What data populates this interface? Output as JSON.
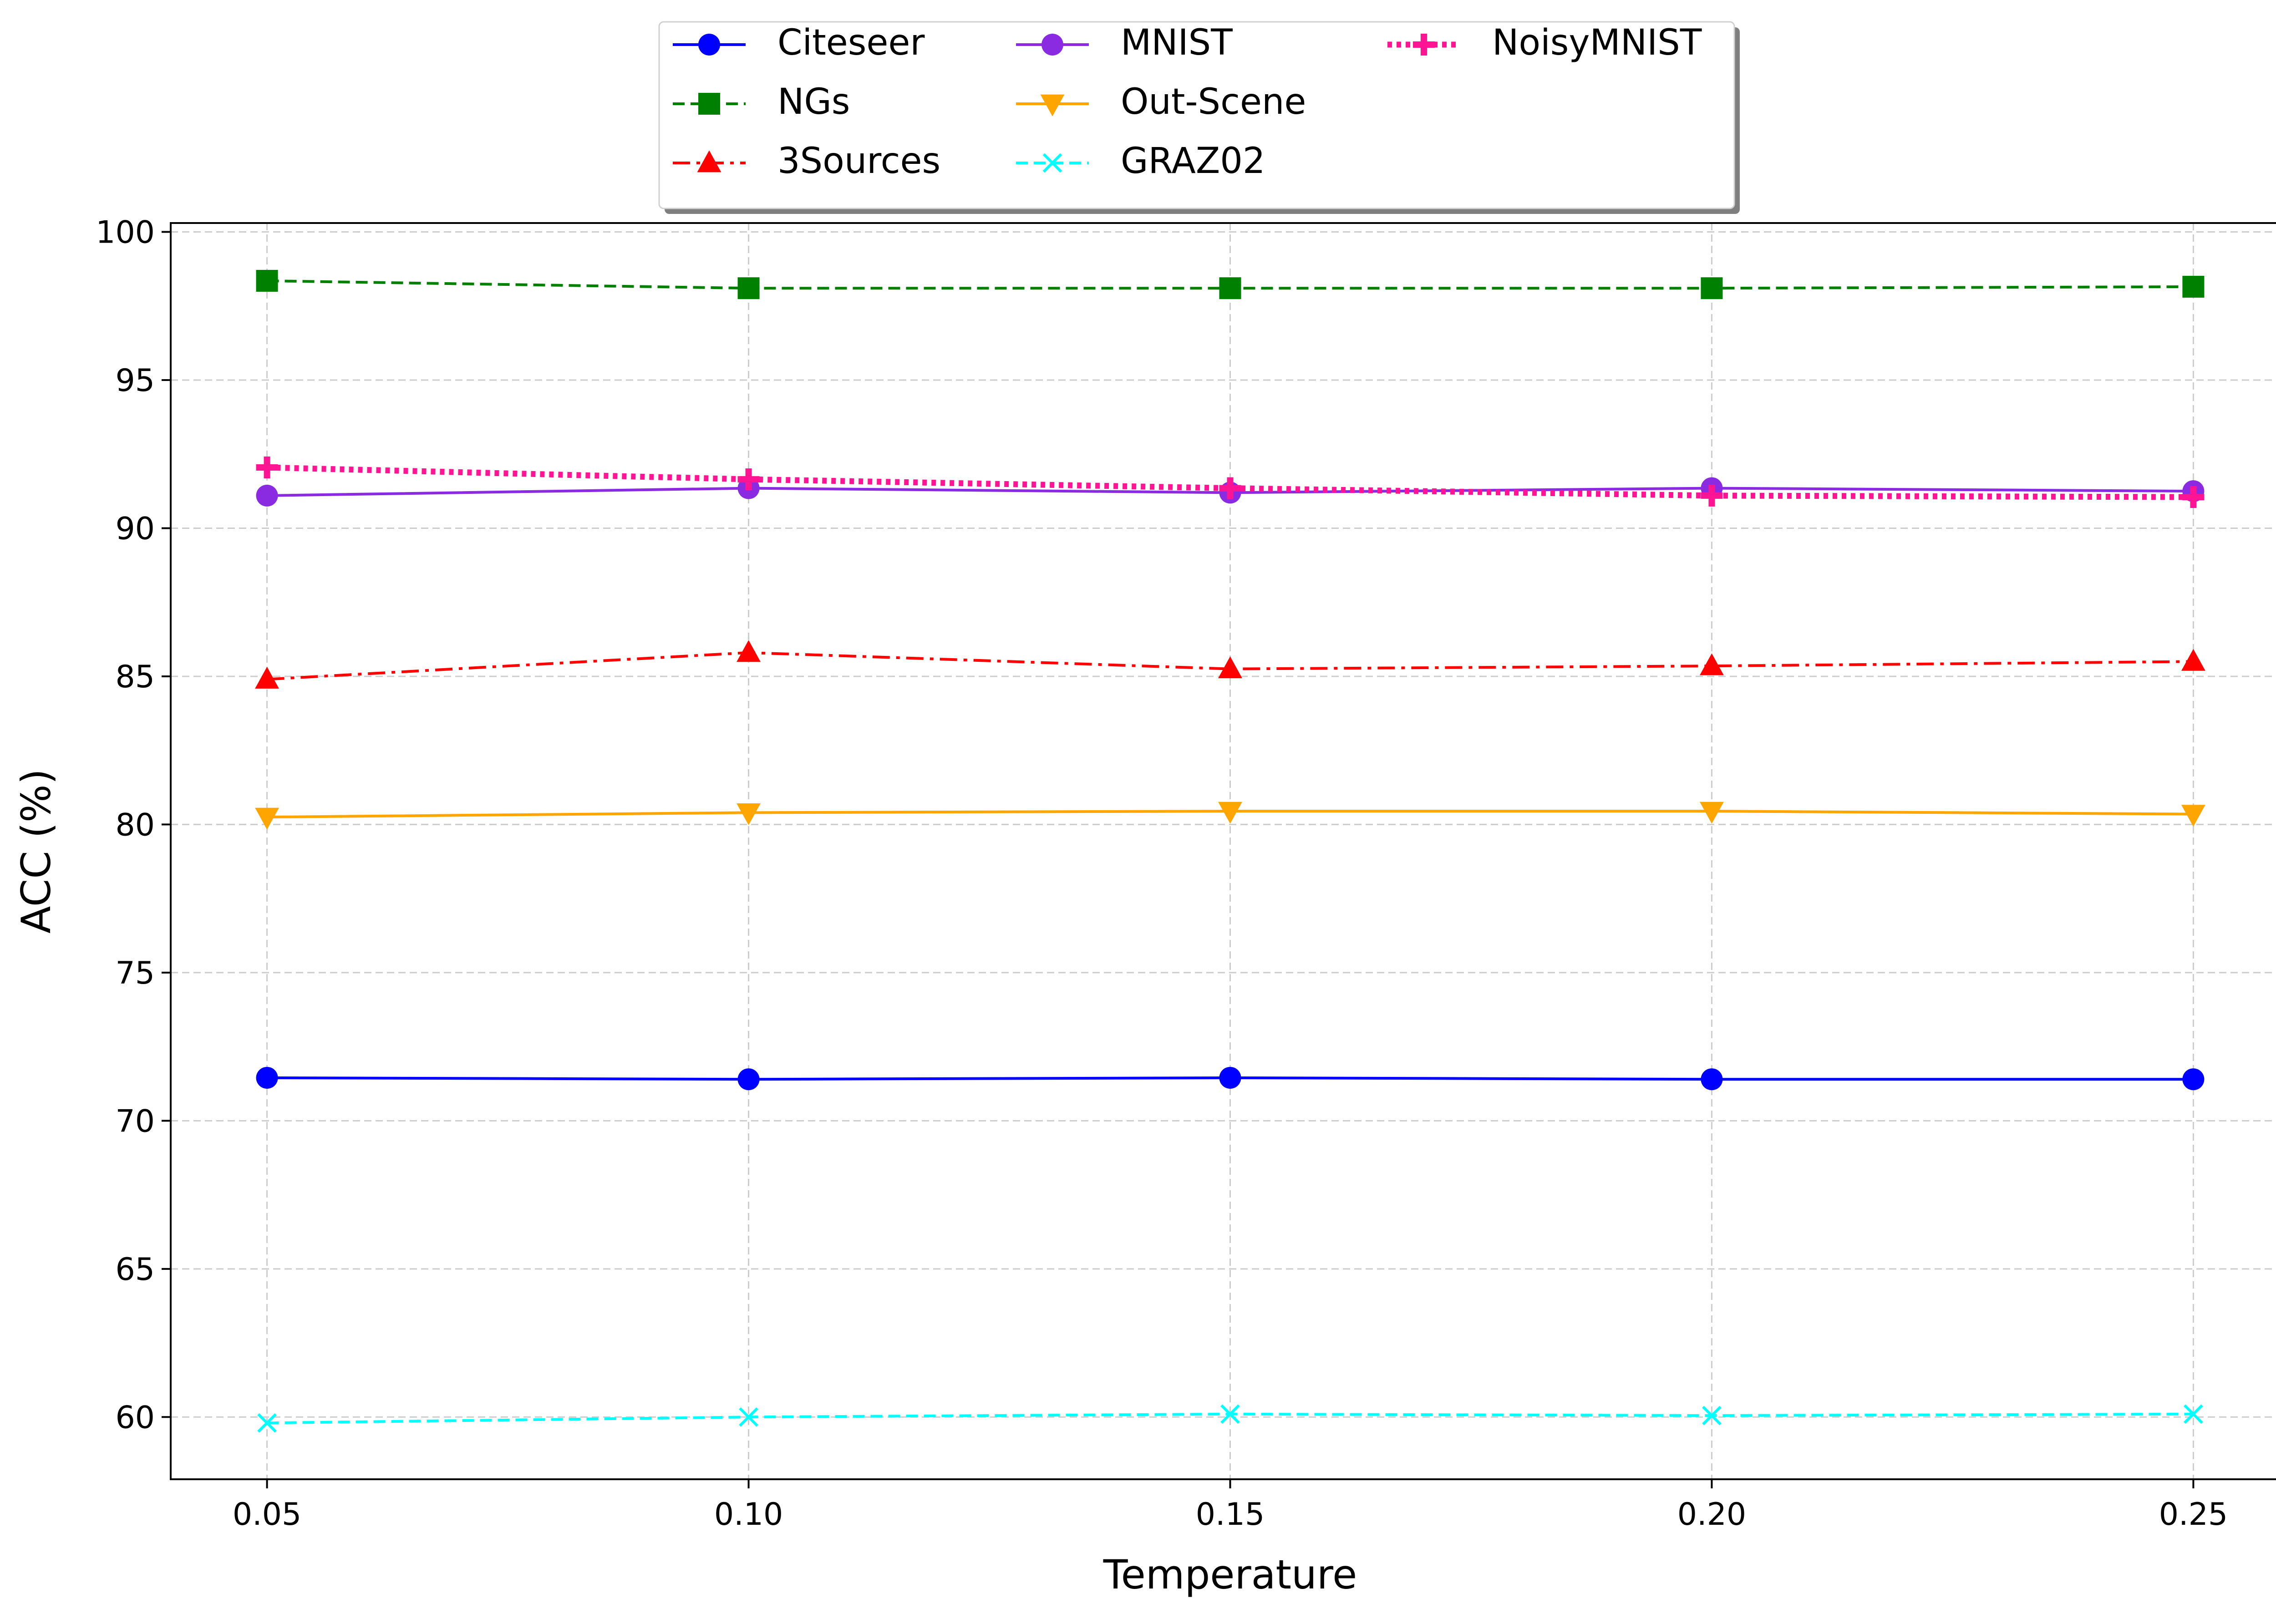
{
  "chart_data": {
    "type": "line",
    "title": "",
    "xlabel": "Temperature",
    "ylabel": "ACC (%)",
    "x": [
      0.05,
      0.1,
      0.15,
      0.2,
      0.25
    ],
    "x_tick_labels": [
      "0.05",
      "0.10",
      "0.15",
      "0.20",
      "0.25"
    ],
    "xlim": [
      0.04,
      0.26
    ],
    "ylim": [
      57.9,
      100.3
    ],
    "y_ticks": [
      60,
      65,
      70,
      75,
      80,
      85,
      90,
      95,
      100
    ],
    "y_tick_labels": [
      "60",
      "65",
      "70",
      "75",
      "80",
      "85",
      "90",
      "95",
      "100"
    ],
    "grid": true,
    "legend_position": "top-center",
    "series": [
      {
        "name": "Citeseer",
        "values": [
          71.45,
          71.4,
          71.45,
          71.4,
          71.4
        ],
        "color": "#0000ff",
        "dash": "solid",
        "marker": "circle"
      },
      {
        "name": "NGs",
        "values": [
          98.35,
          98.1,
          98.1,
          98.1,
          98.15
        ],
        "color": "#008000",
        "dash": "dashed",
        "marker": "square"
      },
      {
        "name": "3Sources",
        "values": [
          84.9,
          85.8,
          85.25,
          85.35,
          85.5
        ],
        "color": "#ff0000",
        "dash": "dashdot",
        "marker": "triangle-up"
      },
      {
        "name": "MNIST",
        "values": [
          91.1,
          91.35,
          91.2,
          91.35,
          91.25
        ],
        "color": "#8a2be2",
        "dash": "solid",
        "marker": "circle"
      },
      {
        "name": "Out-Scene",
        "values": [
          80.25,
          80.4,
          80.45,
          80.45,
          80.35
        ],
        "color": "#ffa500",
        "dash": "solid",
        "marker": "triangle-down"
      },
      {
        "name": "GRAZ02",
        "values": [
          59.8,
          60.0,
          60.1,
          60.05,
          60.1
        ],
        "color": "#00ffff",
        "dash": "dashed",
        "marker": "x"
      },
      {
        "name": "NoisyMNIST",
        "values": [
          92.05,
          91.65,
          91.35,
          91.1,
          91.05
        ],
        "color": "#ff1493",
        "dash": "dotted",
        "marker": "plus"
      }
    ]
  }
}
